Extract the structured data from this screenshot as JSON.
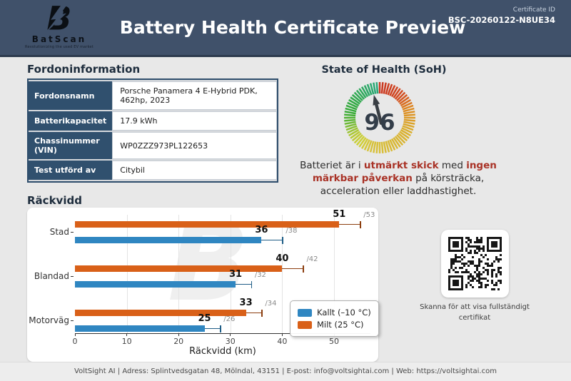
{
  "header": {
    "brand": "BatScan",
    "tagline": "Revolutionizing the used EV market",
    "title": "Battery Health Certificate Preview",
    "certificate_id_label": "Certificate ID",
    "certificate_id": "BSC-20260122-N8UE34"
  },
  "vehicle_info": {
    "heading": "Fordoninformation",
    "rows": [
      {
        "label": "Fordonsnamn",
        "value": "Porsche Panamera 4 E-Hybrid PDK, 462hp, 2023"
      },
      {
        "label": "Batterikapacitet",
        "value": "17.9 kWh"
      },
      {
        "label": "Chassinummer (VIN)",
        "value": "WP0ZZZ973PL122653"
      },
      {
        "label": "Test utförd av",
        "value": "Citybil"
      }
    ]
  },
  "soh": {
    "heading": "State of Health (SoH)",
    "value": 96,
    "gauge_colors": {
      "low": "#c0392b",
      "mid_low": "#e67e22",
      "mid": "#e5c83d",
      "high": "#2e9e62"
    },
    "description_segments": [
      {
        "text": "Batteriet är i ",
        "bold": false
      },
      {
        "text": "utmärkt skick",
        "bold": true
      },
      {
        "text": " med ",
        "bold": false
      },
      {
        "text": "ingen märkbar påverkan",
        "bold": true
      },
      {
        "text": " på körsträcka, acceleration eller laddhastighet.",
        "bold": false
      }
    ]
  },
  "chart_heading": "Räckvidd",
  "chart_data": {
    "type": "bar",
    "orientation": "horizontal",
    "categories": [
      "Stad",
      "Blandad",
      "Motorväg"
    ],
    "series": [
      {
        "name": "Milt (25 °C)",
        "color": "#d96018",
        "error_color": "#8c3e0f",
        "values": [
          51,
          40,
          33
        ],
        "reference_values": [
          53,
          42,
          34
        ]
      },
      {
        "name": "Kallt (–10 °C)",
        "color": "#2f86c1",
        "error_color": "#1f5d86",
        "values": [
          36,
          31,
          25
        ],
        "reference_values": [
          38,
          32,
          26
        ]
      }
    ],
    "legend_entries": [
      {
        "label": "Kallt (–10 °C)",
        "color": "#2f86c1"
      },
      {
        "label": "Milt (25 °C)",
        "color": "#d96018"
      }
    ],
    "xlabel": "Räckvidd (km)",
    "xlim": [
      0,
      57
    ],
    "xticks": [
      0,
      10,
      20,
      30,
      40,
      50
    ],
    "grid": true,
    "legend_position": "lower right"
  },
  "qr": {
    "caption": "Skanna för att visa fullständigt certifikat"
  },
  "footer": {
    "text": "VoltSight AI | Adress: Splintvedsgatan 48, Mölndal, 43151 | E-post: info@voltsightai.com | Web: https://voltsightai.com"
  }
}
